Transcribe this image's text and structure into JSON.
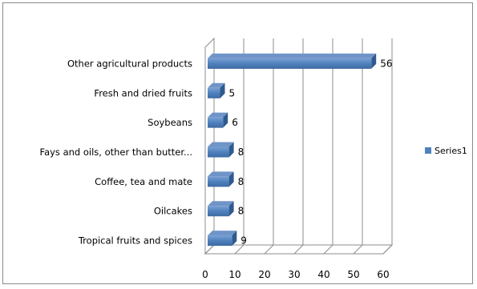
{
  "chart_data": {
    "type": "bar",
    "orientation": "horizontal",
    "style": "3d",
    "categories": [
      "Other agricultural products",
      "Fresh and dried fruits",
      "Soybeans",
      "Fays and oils, other than butter...",
      "Coffee, tea and mate",
      "Oilcakes",
      "Tropical fruits and spices"
    ],
    "series": [
      {
        "name": "Series1",
        "values": [
          56,
          5,
          6,
          8,
          8,
          8,
          9
        ],
        "color": "#4f81bd"
      }
    ],
    "xlim": [
      0,
      60
    ],
    "xticks": [
      "0",
      "10",
      "20",
      "30",
      "40",
      "50",
      "60"
    ],
    "grid": true,
    "legend": "right",
    "data_labels": true
  }
}
